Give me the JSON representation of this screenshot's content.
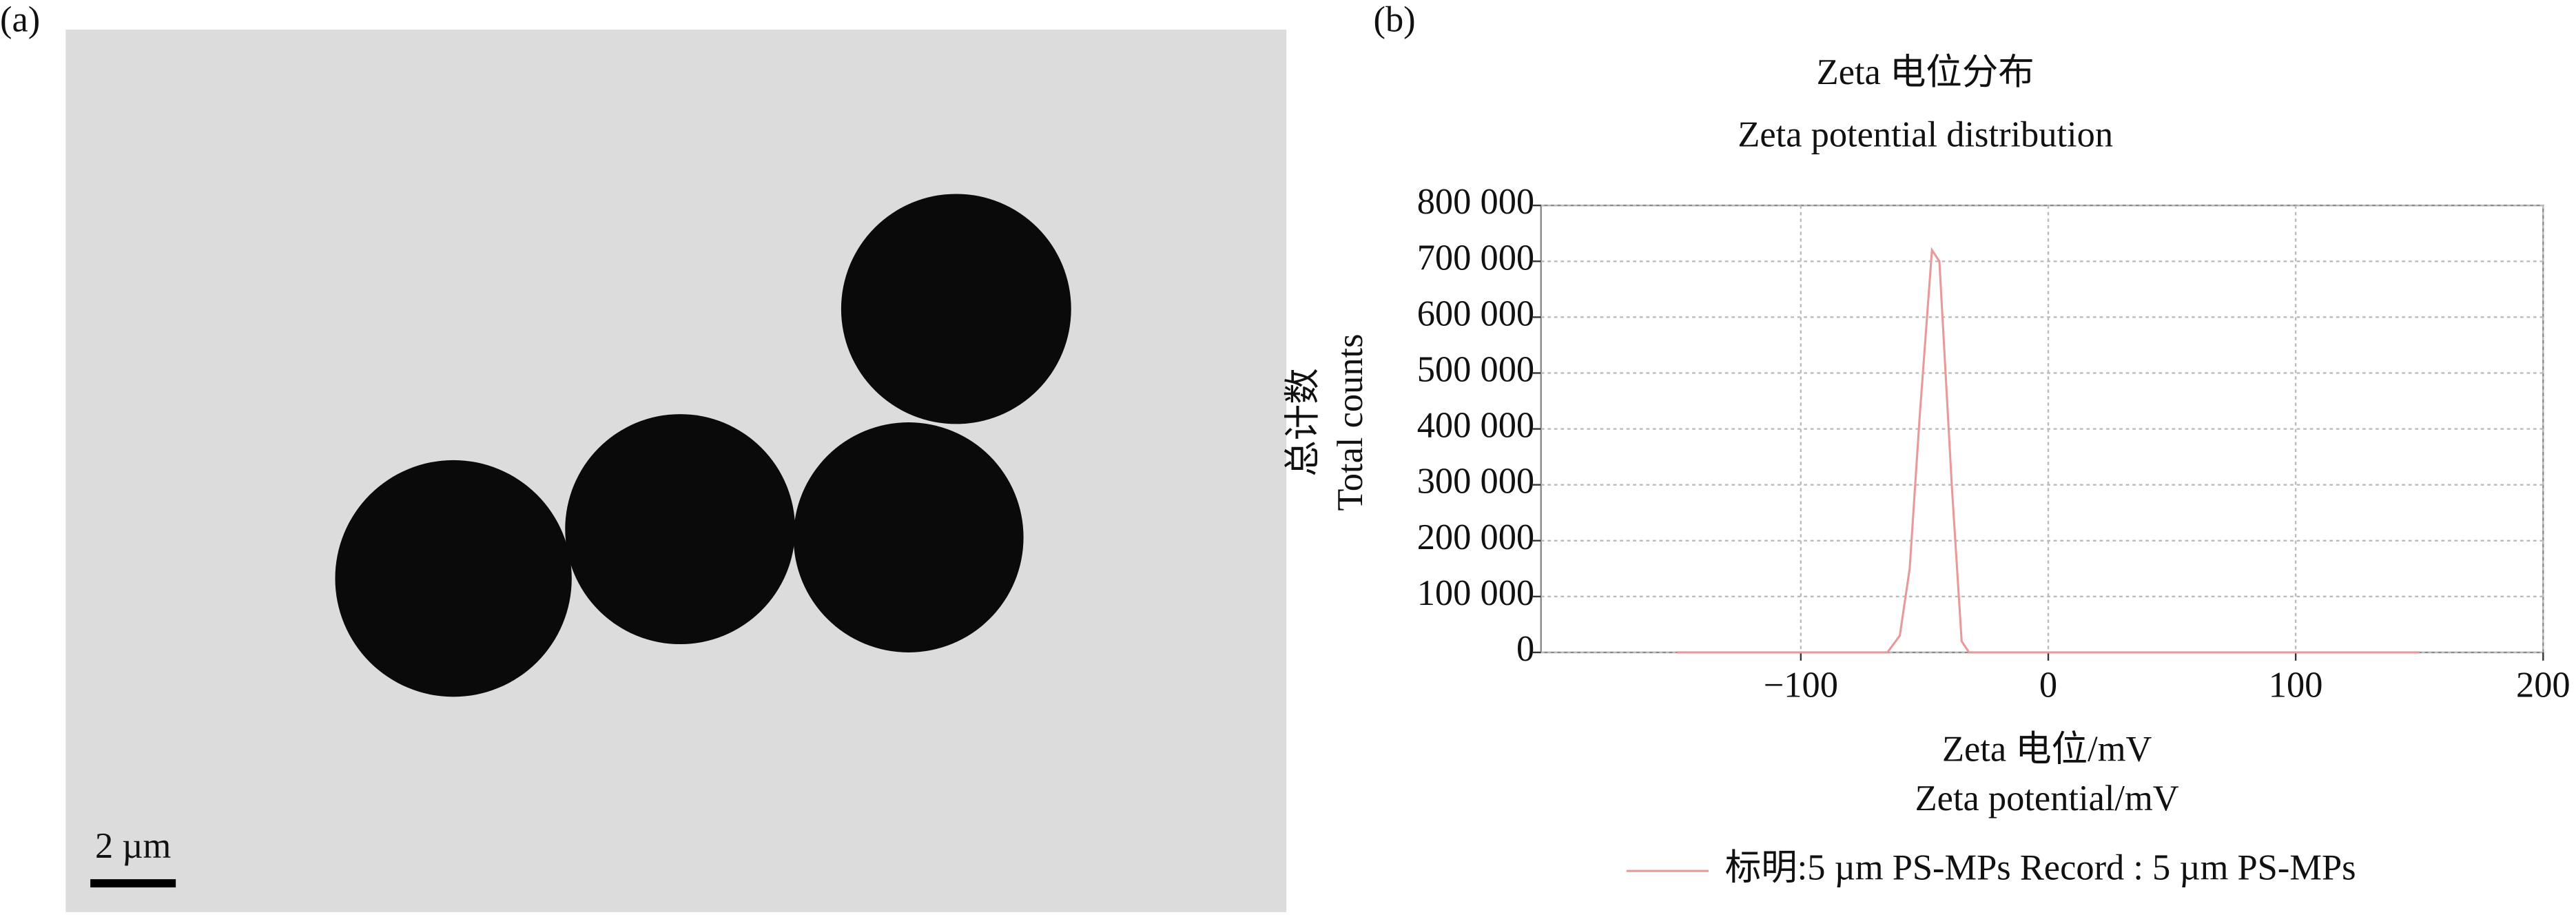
{
  "panel_a": {
    "label": "(a)",
    "scale_bar": "2 µm"
  },
  "chart_data": {
    "type": "line",
    "panel_label": "(b)",
    "title": "Zeta 电位分布",
    "subtitle": "Zeta potential distribution",
    "ylabel": [
      "总计数",
      "Total counts"
    ],
    "xlabel": [
      "Zeta 电位/mV",
      "Zeta potential/mV"
    ],
    "x": [
      -150,
      -65,
      -60,
      -56,
      -52,
      -47,
      -44,
      -39,
      -35,
      -32,
      150
    ],
    "series": [
      {
        "name": "标明:5 µm PS-MPs  Record : 5 µm PS-MPs",
        "color": "#e89a9a",
        "values": [
          0,
          0,
          30000,
          150000,
          420000,
          720000,
          700000,
          300000,
          20000,
          0,
          0
        ]
      }
    ],
    "xlim": [
      -205,
      200
    ],
    "xticks": [
      {
        "value": -100,
        "label": "−100"
      },
      0,
      100,
      200
    ],
    "ylim": [
      0,
      800000
    ],
    "yticks": [
      0,
      {
        "value": 100000,
        "label": "100 000"
      },
      {
        "value": 200000,
        "label": "200 000"
      },
      {
        "value": 300000,
        "label": "300 000"
      },
      {
        "value": 400000,
        "label": "400 000"
      },
      {
        "value": 500000,
        "label": "500 000"
      },
      {
        "value": 600000,
        "label": "600 000"
      },
      {
        "value": 700000,
        "label": "700 000"
      },
      {
        "value": 800000,
        "label": "800 000"
      }
    ],
    "grid": true,
    "legend": "bottom"
  }
}
